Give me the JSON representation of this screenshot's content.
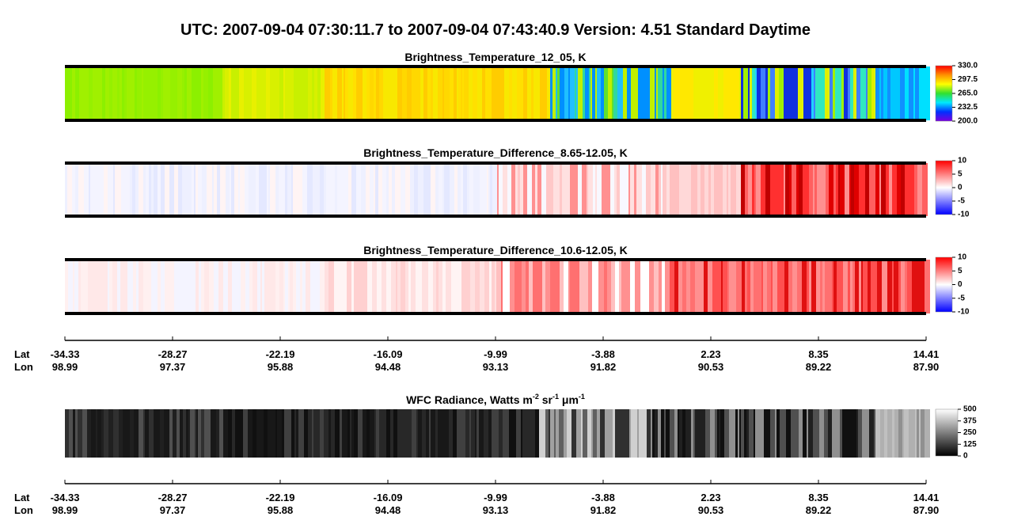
{
  "title": "UTC:  2007-09-04   07:30:11.7  to  2007-09-04   07:43:40.9    Version: 4.51  Standard Daytime",
  "panels": [
    {
      "title": [
        {
          "text": "Brightness_Temperature_12_05, K"
        }
      ],
      "colorbar": {
        "range": [
          200,
          330
        ],
        "colors": [
          "#7a00e0",
          "#0030ff",
          "#00e8ff",
          "#30e030",
          "#ffff00",
          "#ff9000",
          "#ff0000"
        ],
        "ticks": [
          {
            "value": 330,
            "label": "330.0"
          },
          {
            "value": 297.5,
            "label": "297.5"
          },
          {
            "value": 265,
            "label": "265.0"
          },
          {
            "value": 232.5,
            "label": "232.5"
          },
          {
            "value": 200,
            "label": "200.0"
          }
        ]
      }
    },
    {
      "title": [
        {
          "text": "Brightness_Temperature_Difference_8.65-12.05, K"
        }
      ],
      "colorbar": {
        "range": [
          -10,
          10
        ],
        "colors": [
          "#0000ff",
          "#ffffff",
          "#ff0000"
        ],
        "ticks": [
          10,
          5,
          0,
          -5,
          -10
        ]
      }
    },
    {
      "title": [
        {
          "text": "Brightness_Temperature_Difference_10.6-12.05, K"
        }
      ],
      "colorbar": {
        "range": [
          -10,
          10
        ],
        "colors": [
          "#0000ff",
          "#ffffff",
          "#ff0000"
        ],
        "ticks": [
          10,
          5,
          0,
          -5,
          -10
        ]
      }
    },
    {
      "title": [
        {
          "text": "WFC Radiance, Watts m"
        },
        {
          "sup": "-2"
        },
        {
          "text": " sr"
        },
        {
          "sup": "-1"
        },
        {
          "text": " μm"
        },
        {
          "sup": "-1"
        }
      ],
      "colorbar": {
        "range": [
          0,
          500
        ],
        "colors": [
          "#000000",
          "#ffffff"
        ],
        "ticks": [
          500,
          375,
          250,
          125,
          0
        ]
      }
    }
  ],
  "axes": [
    {
      "lat_label": "Lat",
      "lon_label": "Lon",
      "lat": [
        "-34.33",
        "-28.27",
        "-22.19",
        "-16.09",
        "-9.99",
        "-3.88",
        "2.23",
        "8.35",
        "14.41"
      ],
      "lon": [
        "98.99",
        "97.37",
        "95.88",
        "94.48",
        "93.13",
        "91.82",
        "90.53",
        "89.22",
        "87.90"
      ]
    },
    {
      "lat_label": "Lat",
      "lon_label": "Lon",
      "lat": [
        "-34.33",
        "-28.27",
        "-22.19",
        "-16.09",
        "-9.99",
        "-3.88",
        "2.23",
        "8.35",
        "14.41"
      ],
      "lon": [
        "98.99",
        "97.37",
        "95.88",
        "94.48",
        "93.13",
        "91.82",
        "90.53",
        "89.22",
        "87.90"
      ]
    }
  ]
}
